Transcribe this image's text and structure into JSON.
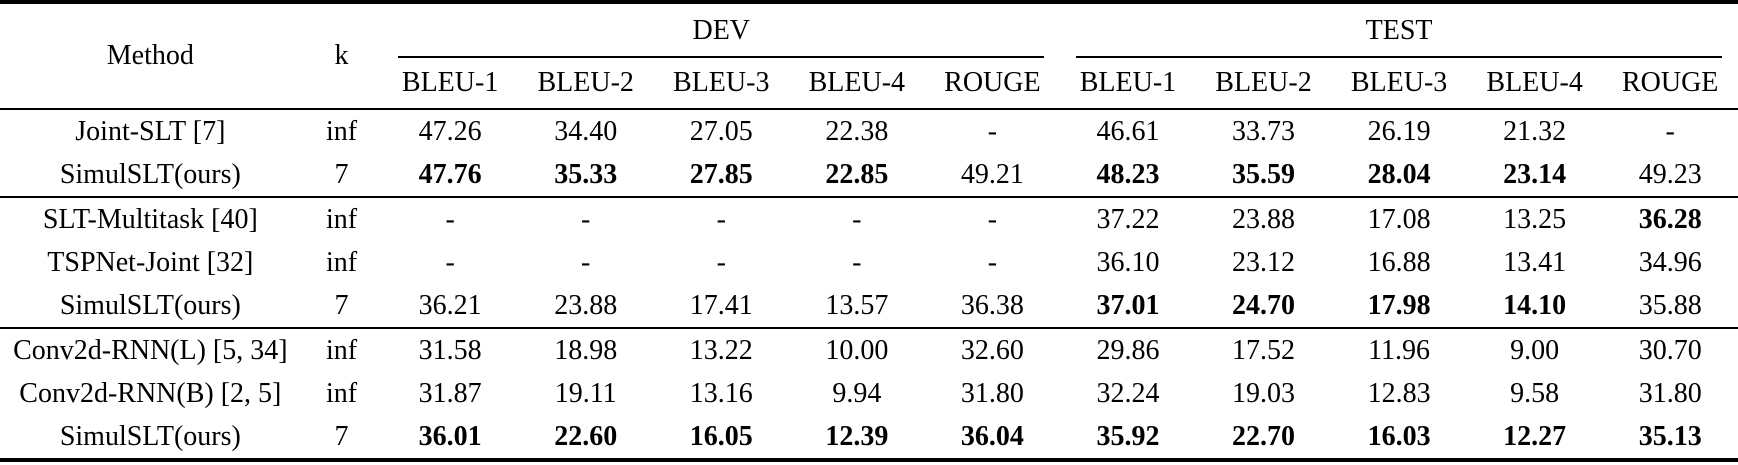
{
  "header": {
    "method_label": "Method",
    "k_label": "k",
    "groups": [
      {
        "label": "DEV",
        "columns": [
          "BLEU-1",
          "BLEU-2",
          "BLEU-3",
          "BLEU-4",
          "ROUGE"
        ]
      },
      {
        "label": "TEST",
        "columns": [
          "BLEU-1",
          "BLEU-2",
          "BLEU-3",
          "BLEU-4",
          "ROUGE"
        ]
      }
    ]
  },
  "body": {
    "groups": [
      {
        "rows": [
          {
            "method": "Joint-SLT [7]",
            "k": "inf",
            "values": [
              "47.26",
              "34.40",
              "27.05",
              "22.38",
              "-",
              "46.61",
              "33.73",
              "26.19",
              "21.32",
              "-"
            ],
            "bold": [
              false,
              false,
              false,
              false,
              false,
              false,
              false,
              false,
              false,
              false
            ]
          },
          {
            "method": "SimulSLT(ours)",
            "k": "7",
            "values": [
              "47.76",
              "35.33",
              "27.85",
              "22.85",
              "49.21",
              "48.23",
              "35.59",
              "28.04",
              "23.14",
              "49.23"
            ],
            "bold": [
              true,
              true,
              true,
              true,
              false,
              true,
              true,
              true,
              true,
              false
            ]
          }
        ]
      },
      {
        "rows": [
          {
            "method": "SLT-Multitask [40]",
            "k": "inf",
            "values": [
              "-",
              "-",
              "-",
              "-",
              "-",
              "37.22",
              "23.88",
              "17.08",
              "13.25",
              "36.28"
            ],
            "bold": [
              false,
              false,
              false,
              false,
              false,
              false,
              false,
              false,
              false,
              true
            ]
          },
          {
            "method": "TSPNet-Joint [32]",
            "k": "inf",
            "values": [
              "-",
              "-",
              "-",
              "-",
              "-",
              "36.10",
              "23.12",
              "16.88",
              "13.41",
              "34.96"
            ],
            "bold": [
              false,
              false,
              false,
              false,
              false,
              false,
              false,
              false,
              false,
              false
            ]
          },
          {
            "method": "SimulSLT(ours)",
            "k": "7",
            "values": [
              "36.21",
              "23.88",
              "17.41",
              "13.57",
              "36.38",
              "37.01",
              "24.70",
              "17.98",
              "14.10",
              "35.88"
            ],
            "bold": [
              false,
              false,
              false,
              false,
              false,
              true,
              true,
              true,
              true,
              false
            ]
          }
        ]
      },
      {
        "rows": [
          {
            "method": "Conv2d-RNN(L) [5, 34]",
            "k": "inf",
            "values": [
              "31.58",
              "18.98",
              "13.22",
              "10.00",
              "32.60",
              "29.86",
              "17.52",
              "11.96",
              "9.00",
              "30.70"
            ],
            "bold": [
              false,
              false,
              false,
              false,
              false,
              false,
              false,
              false,
              false,
              false
            ]
          },
          {
            "method": "Conv2d-RNN(B) [2, 5]",
            "k": "inf",
            "values": [
              "31.87",
              "19.11",
              "13.16",
              "9.94",
              "31.80",
              "32.24",
              "19.03",
              "12.83",
              "9.58",
              "31.80"
            ],
            "bold": [
              false,
              false,
              false,
              false,
              false,
              false,
              false,
              false,
              false,
              false
            ]
          },
          {
            "method": "SimulSLT(ours)",
            "k": "7",
            "values": [
              "36.01",
              "22.60",
              "16.05",
              "12.39",
              "36.04",
              "35.92",
              "22.70",
              "16.03",
              "12.27",
              "35.13"
            ],
            "bold": [
              true,
              true,
              true,
              true,
              true,
              true,
              true,
              true,
              true,
              true
            ]
          }
        ]
      }
    ]
  },
  "colors": {
    "text": "#000000",
    "background": "#ffffff",
    "rule": "#000000"
  }
}
